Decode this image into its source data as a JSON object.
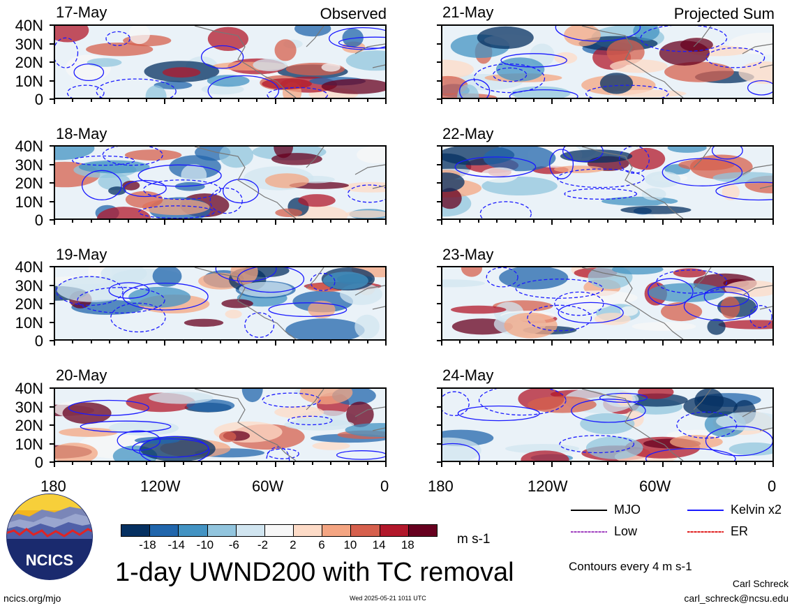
{
  "panels": {
    "left": [
      {
        "date": "17-May",
        "corner": "Observed"
      },
      {
        "date": "18-May",
        "corner": ""
      },
      {
        "date": "19-May",
        "corner": ""
      },
      {
        "date": "20-May",
        "corner": ""
      }
    ],
    "right": [
      {
        "date": "21-May",
        "corner": "Projected Sum"
      },
      {
        "date": "22-May",
        "corner": ""
      },
      {
        "date": "23-May",
        "corner": ""
      },
      {
        "date": "24-May",
        "corner": ""
      }
    ]
  },
  "lat_labels": [
    "40N",
    "30N",
    "20N",
    "10N",
    "0"
  ],
  "lon_labels": [
    "180",
    "120W",
    "60W",
    "0"
  ],
  "colorbar": {
    "tick_labels": [
      "-18",
      "-14",
      "-10",
      "-6",
      "-2",
      "2",
      "6",
      "10",
      "14",
      "18"
    ],
    "units": "m s-1",
    "colors": [
      "#053061",
      "#2166ac",
      "#4393c3",
      "#92c5de",
      "#d1e5f0",
      "#f7f7f7",
      "#fddbc7",
      "#f4a582",
      "#d6604d",
      "#b2182b",
      "#67001f"
    ]
  },
  "title": "1-day UWND200 with TC removal",
  "legend": {
    "items": [
      {
        "label": "MJO",
        "color": "#000000"
      },
      {
        "label": "Kelvin x2",
        "color": "#1a1aff"
      },
      {
        "label": "Low",
        "color": "#a040c0"
      },
      {
        "label": "ER",
        "color": "#e02020"
      }
    ],
    "contour_note": "Contours every 4 m s-1"
  },
  "logo": {
    "text": "NCICS"
  },
  "footer": {
    "left": "ncics.org/mjo",
    "center": "Wed 2025-05-21 1011 UTC",
    "author": "Carl Schreck",
    "email": "carl_schreck@ncsu.edu"
  }
}
